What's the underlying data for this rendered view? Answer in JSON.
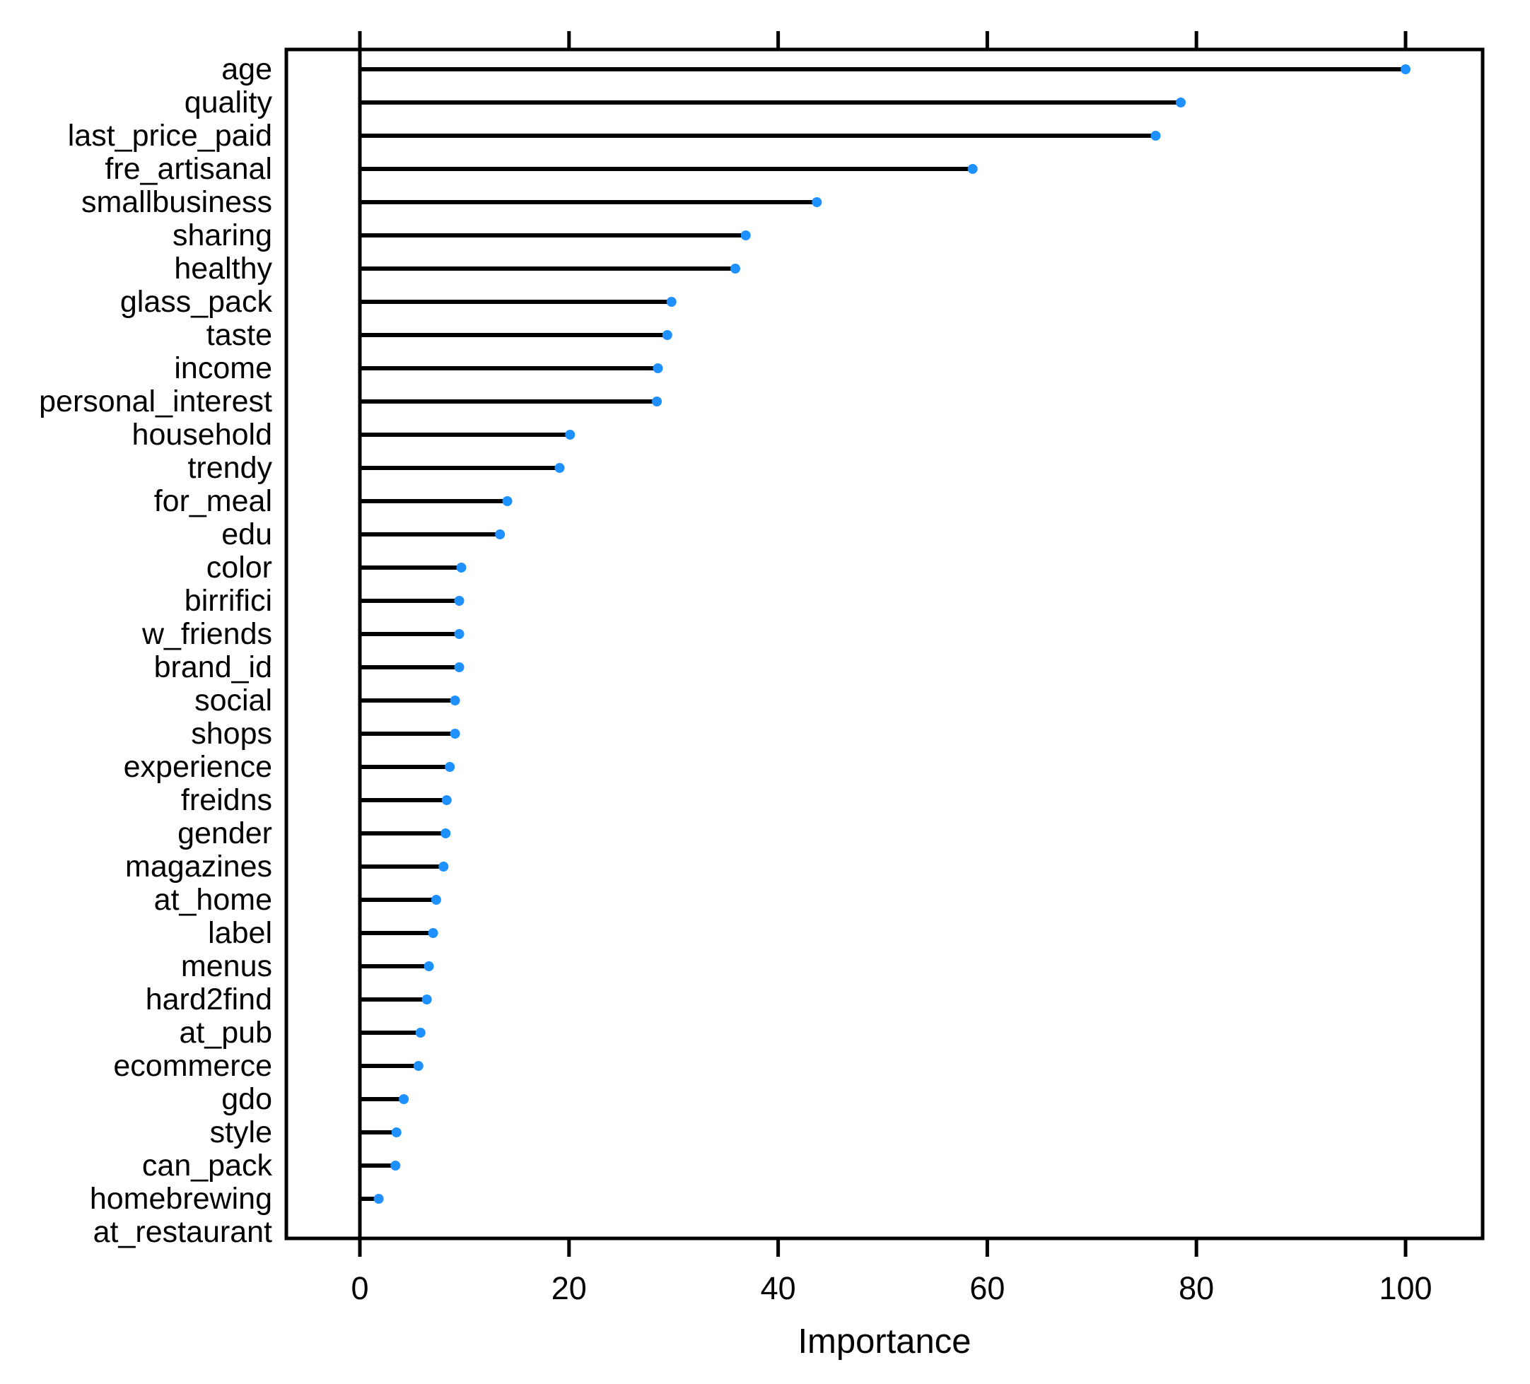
{
  "chart_data": {
    "type": "scatter",
    "subtype": "lollipop-dotplot",
    "title": "",
    "xlabel": "Importance",
    "ylabel": "",
    "xlim": [
      0,
      107
    ],
    "xticks": [
      0,
      20,
      40,
      60,
      80,
      100
    ],
    "grid": false,
    "legend": "none",
    "dot_color": "#1E90FF",
    "line_color": "#000000",
    "categories": [
      "age",
      "quality",
      "last_price_paid",
      "fre_artisanal",
      "smallbusiness",
      "sharing",
      "healthy",
      "glass_pack",
      "taste",
      "income",
      "personal_interest",
      "household",
      "trendy",
      "for_meal",
      "edu",
      "color",
      "birrifici",
      "w_friends",
      "brand_id",
      "social",
      "shops",
      "experience",
      "freidns",
      "gender",
      "magazines",
      "at_home",
      "label",
      "menus",
      "hard2find",
      "at_pub",
      "ecommerce",
      "gdo",
      "style",
      "can_pack",
      "homebrewing",
      "at_restaurant"
    ],
    "values": [
      100,
      78.5,
      76.1,
      58.6,
      43.7,
      36.9,
      35.9,
      29.8,
      29.4,
      28.5,
      28.4,
      20.1,
      19.1,
      14.1,
      13.4,
      9.7,
      9.5,
      9.5,
      9.5,
      9.1,
      9.1,
      8.6,
      8.3,
      8.2,
      8.0,
      7.3,
      7.0,
      6.6,
      6.4,
      5.8,
      5.6,
      4.2,
      3.5,
      3.4,
      1.8,
      0
    ]
  }
}
